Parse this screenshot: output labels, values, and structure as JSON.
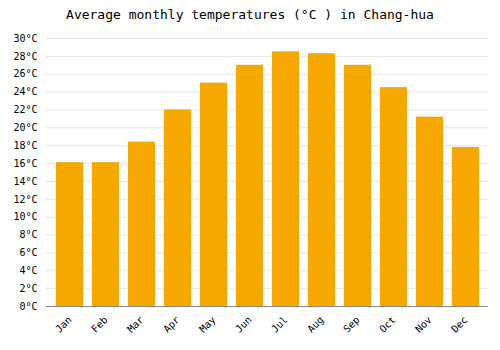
{
  "chart_data": {
    "type": "bar",
    "title": "Average monthly temperatures (°C ) in Chang-hua",
    "categories": [
      "Jan",
      "Feb",
      "Mar",
      "Apr",
      "May",
      "Jun",
      "Jul",
      "Aug",
      "Sep",
      "Oct",
      "Nov",
      "Dec"
    ],
    "values": [
      16.1,
      16.1,
      18.4,
      22.0,
      25.0,
      27.0,
      28.5,
      28.3,
      27.0,
      24.5,
      21.2,
      17.8
    ],
    "color": "#F5A800",
    "ylim": [
      0,
      30
    ],
    "yticks": [
      {
        "value": 0,
        "label": "0°C"
      },
      {
        "value": 2,
        "label": "2°C"
      },
      {
        "value": 4,
        "label": "4°C"
      },
      {
        "value": 6,
        "label": "6°C"
      },
      {
        "value": 8,
        "label": "8°C"
      },
      {
        "value": 10,
        "label": "10°C"
      },
      {
        "value": 12,
        "label": "12°C"
      },
      {
        "value": 14,
        "label": "14°C"
      },
      {
        "value": 16,
        "label": "16°C"
      },
      {
        "value": 18,
        "label": "18°C"
      },
      {
        "value": 20,
        "label": "20°C"
      },
      {
        "value": 22,
        "label": "22°C"
      },
      {
        "value": 24,
        "label": "24°C"
      },
      {
        "value": 26,
        "label": "26°C"
      },
      {
        "value": 28,
        "label": "28°C"
      },
      {
        "value": 30,
        "label": "30°C"
      }
    ],
    "grid": true
  }
}
